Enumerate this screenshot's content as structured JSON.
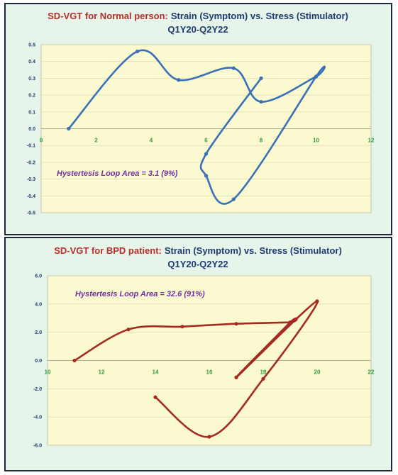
{
  "chart_data": [
    {
      "type": "line",
      "title_part1": "SD-VGT for Normal person:",
      "title_part2": "Strain (Symptom) vs. Stress (Stimulator)",
      "subtitle": "Q1Y20-Q2Y22",
      "annotation": "Hystertesis Loop Area = 3.1  (9%)",
      "xlabel": "",
      "ylabel": "",
      "xlim": [
        0,
        12
      ],
      "ylim": [
        -0.5,
        0.5
      ],
      "x_ticks": [
        "0",
        "2",
        "4",
        "6",
        "8",
        "10",
        "12"
      ],
      "y_ticks": [
        "0.5",
        "0.4",
        "0.3",
        "0.2",
        "0.1",
        "0.0",
        "-0.1",
        "-0.2",
        "-0.3",
        "-0.4",
        "-0.5"
      ],
      "line_color": "#3a70b8",
      "plot_background": "#fbf9cf",
      "grid": true,
      "series": [
        {
          "x": [
            1,
            3.5,
            5,
            7,
            8,
            10,
            10,
            7,
            6,
            6,
            8
          ],
          "y": [
            0.0,
            0.46,
            0.29,
            0.36,
            0.16,
            0.31,
            0.31,
            -0.42,
            -0.28,
            -0.15,
            0.3
          ]
        }
      ]
    },
    {
      "type": "line",
      "title_part1": "SD-VGT for BPD patient:",
      "title_part2": "Strain (Symptom) vs. Stress (Stimulator)",
      "subtitle": "Q1Y20-Q2Y22",
      "annotation": "Hystertesis Loop Area = 32.6  (91%)",
      "xlabel": "",
      "ylabel": "",
      "xlim": [
        10,
        22
      ],
      "ylim": [
        -6.0,
        6.0
      ],
      "x_ticks": [
        "10",
        "12",
        "14",
        "16",
        "18",
        "20",
        "22"
      ],
      "y_ticks": [
        "6.0",
        "4.0",
        "2.0",
        "0.0",
        "-2.0",
        "-4.0",
        "-6.0"
      ],
      "line_color": "#a52a1f",
      "plot_background": "#fbf9cf",
      "grid": true,
      "series": [
        {
          "x": [
            11,
            13,
            15,
            17,
            19,
            19,
            17,
            20,
            18,
            16,
            14
          ],
          "y": [
            0.0,
            2.2,
            2.4,
            2.6,
            2.7,
            2.7,
            -1.2,
            4.2,
            -1.3,
            -5.4,
            -2.6
          ]
        }
      ]
    }
  ]
}
